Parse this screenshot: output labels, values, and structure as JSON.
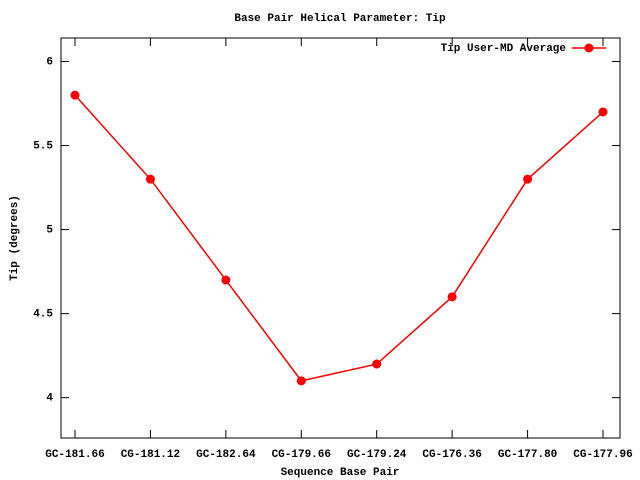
{
  "chart_data": {
    "type": "line",
    "title": "Base Pair Helical Parameter: Tip",
    "x_label": "Sequence Base Pair",
    "y_label": "Tip (degrees)",
    "categories": [
      "GC-181.66",
      "CG-181.12",
      "GC-182.64",
      "CG-179.66",
      "GC-179.24",
      "CG-176.36",
      "GC-177.80",
      "CG-177.96"
    ],
    "series": [
      {
        "name": "Tip User-MD Average",
        "color": "#ff0000",
        "values": [
          5.8,
          5.3,
          4.7,
          4.1,
          4.2,
          4.6,
          5.3,
          5.7
        ]
      }
    ],
    "ylim": [
      3.76,
      6.14
    ],
    "yticks": [
      4,
      4.5,
      5,
      5.5,
      6
    ],
    "legend": "top-right"
  }
}
